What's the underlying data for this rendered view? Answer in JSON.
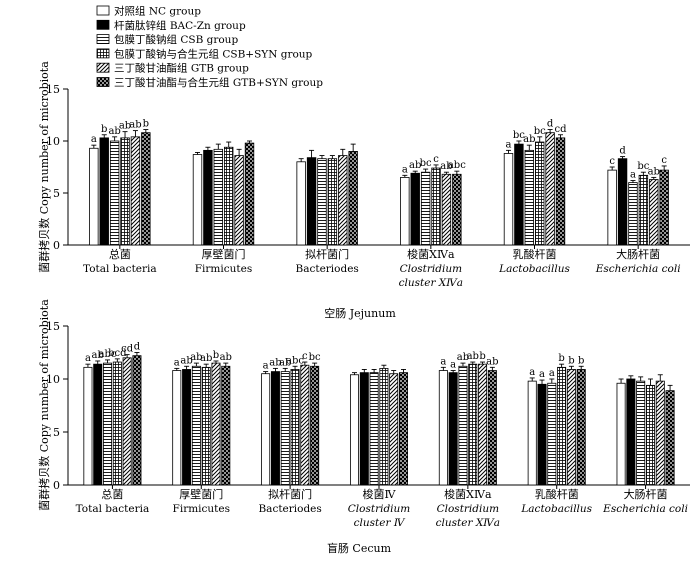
{
  "legend": [
    {
      "label": "对照组  NC group",
      "pattern": "white"
    },
    {
      "label": "杆菌肽锌组  BAC-Zn group",
      "pattern": "black"
    },
    {
      "label": "包膜丁酸钠组  CSB group",
      "pattern": "hlines"
    },
    {
      "label": "包膜丁酸钠与合生元组  CSB+SYN group",
      "pattern": "grid"
    },
    {
      "label": "三丁酸甘油酯组  GTB group",
      "pattern": "diag"
    },
    {
      "label": "三丁酸甘油酯与合生元组  GTB+SYN group",
      "pattern": "dots"
    }
  ],
  "chart_data": [
    {
      "type": "bar",
      "title": "空肠  Jejunum",
      "ylabel": "菌群拷贝数 Copy number of microbiota",
      "ylim": [
        0,
        15
      ],
      "yticks": [
        "0",
        "5",
        "10",
        "15"
      ],
      "categories": [
        {
          "cn": "总菌",
          "en": "Total bacteria",
          "en2": "",
          "italic": false
        },
        {
          "cn": "厚壁菌门",
          "en": "Firmicutes",
          "en2": "",
          "italic": false
        },
        {
          "cn": "拟杆菌门",
          "en": "Bacteriodes",
          "en2": "",
          "italic": false
        },
        {
          "cn": "梭菌XⅣa",
          "en": "Clostridium",
          "en2": "cluster XⅣa",
          "italic": true
        },
        {
          "cn": "乳酸杆菌",
          "en": "Lactobacillus",
          "en2": "",
          "italic": true
        },
        {
          "cn": "大肠杆菌",
          "en": "Escherichia coli",
          "en2": "",
          "italic": true
        }
      ],
      "series": [
        {
          "name": "NC group",
          "values": [
            9.3,
            8.7,
            8.0,
            6.5,
            8.8,
            7.2
          ],
          "errors": [
            0.3,
            0.2,
            0.3,
            0.2,
            0.3,
            0.3
          ],
          "labels": [
            "a",
            "",
            "",
            "a",
            "a",
            "c"
          ]
        },
        {
          "name": "BAC-Zn group",
          "values": [
            10.3,
            9.1,
            8.4,
            6.9,
            9.7,
            8.3
          ],
          "errors": [
            0.3,
            0.3,
            0.7,
            0.2,
            0.3,
            0.2
          ],
          "labels": [
            "b",
            "",
            "",
            "ab",
            "bc",
            "d"
          ]
        },
        {
          "name": "CSB group",
          "values": [
            10.0,
            9.2,
            8.3,
            7.0,
            9.1,
            6.0
          ],
          "errors": [
            0.4,
            0.5,
            0.3,
            0.3,
            0.5,
            0.2
          ],
          "labels": [
            "ab",
            "",
            "",
            "bc",
            "ab",
            "a"
          ]
        },
        {
          "name": "CSB+SYN group",
          "values": [
            10.3,
            9.4,
            8.3,
            7.4,
            9.9,
            6.7
          ],
          "errors": [
            0.6,
            0.5,
            0.3,
            0.3,
            0.5,
            0.3
          ],
          "labels": [
            "ab",
            "",
            "",
            "c",
            "bc",
            "bc"
          ]
        },
        {
          "name": "GTB group",
          "values": [
            10.4,
            8.6,
            8.6,
            6.8,
            10.8,
            6.3
          ],
          "errors": [
            0.6,
            0.6,
            0.6,
            0.2,
            0.3,
            0.2
          ],
          "labels": [
            "ab",
            "",
            "",
            "ab",
            "d",
            "ab"
          ]
        },
        {
          "name": "GTB+SYN group",
          "values": [
            10.8,
            9.8,
            9.0,
            6.8,
            10.3,
            7.2
          ],
          "errors": [
            0.3,
            0.2,
            0.7,
            0.3,
            0.3,
            0.4
          ],
          "labels": [
            "b",
            "",
            "",
            "abc",
            "cd",
            "c"
          ]
        }
      ]
    },
    {
      "type": "bar",
      "title": "盲肠  Cecum",
      "ylabel": "菌群拷贝数 Copy number of microbiota",
      "ylim": [
        0,
        15
      ],
      "yticks": [
        "0",
        "5",
        "10",
        "15"
      ],
      "categories": [
        {
          "cn": "总菌",
          "en": "Total bacteria",
          "en2": "",
          "italic": false
        },
        {
          "cn": "厚壁菌门",
          "en": "Firmicutes",
          "en2": "",
          "italic": false
        },
        {
          "cn": "拟杆菌门",
          "en": "Bacteriodes",
          "en2": "",
          "italic": false
        },
        {
          "cn": "梭菌Ⅳ",
          "en": "Clostridium",
          "en2": "cluster Ⅳ",
          "italic": true
        },
        {
          "cn": "梭菌XⅣa",
          "en": "Clostridium",
          "en2": "cluster XⅣa",
          "italic": true
        },
        {
          "cn": "乳酸杆菌",
          "en": "Lactobacillus",
          "en2": "",
          "italic": true
        },
        {
          "cn": "大肠杆菌",
          "en": "Escherichia coli",
          "en2": "",
          "italic": true
        }
      ],
      "series": [
        {
          "name": "NC group",
          "values": [
            11.1,
            10.8,
            10.5,
            10.4,
            10.8,
            9.8,
            9.6
          ],
          "errors": [
            0.3,
            0.2,
            0.2,
            0.2,
            0.3,
            0.3,
            0.4
          ],
          "labels": [
            "a",
            "a",
            "a",
            "",
            "a",
            "a",
            ""
          ]
        },
        {
          "name": "BAC-Zn group",
          "values": [
            11.4,
            10.9,
            10.7,
            10.6,
            10.6,
            9.5,
            10.0
          ],
          "errors": [
            0.3,
            0.3,
            0.3,
            0.3,
            0.2,
            0.4,
            0.3
          ],
          "labels": [
            "ab",
            "ab",
            "ab",
            "",
            "a",
            "a",
            ""
          ]
        },
        {
          "name": "CSB group",
          "values": [
            11.5,
            11.2,
            10.7,
            10.6,
            11.2,
            9.6,
            9.8
          ],
          "errors": [
            0.3,
            0.3,
            0.3,
            0.3,
            0.3,
            0.4,
            0.4
          ],
          "labels": [
            "abc",
            "ab",
            "ab",
            "",
            "ab",
            "a",
            ""
          ]
        },
        {
          "name": "CSB+SYN group",
          "values": [
            11.6,
            11.1,
            10.9,
            11.0,
            11.4,
            11.1,
            9.4
          ],
          "errors": [
            0.3,
            0.3,
            0.3,
            0.3,
            0.2,
            0.3,
            0.6
          ],
          "labels": [
            "bcd",
            "ab",
            "abc",
            "",
            "ab",
            "b",
            ""
          ]
        },
        {
          "name": "GTB group",
          "values": [
            12.0,
            11.5,
            11.3,
            10.5,
            11.4,
            10.9,
            9.8
          ],
          "errors": [
            0.3,
            0.2,
            0.3,
            0.3,
            0.2,
            0.3,
            0.6
          ],
          "labels": [
            "cd",
            "b",
            "c",
            "",
            "b",
            "b",
            ""
          ]
        },
        {
          "name": "GTB+SYN group",
          "values": [
            12.2,
            11.2,
            11.2,
            10.6,
            10.8,
            10.9,
            8.9
          ],
          "errors": [
            0.3,
            0.3,
            0.3,
            0.3,
            0.3,
            0.3,
            0.5
          ],
          "labels": [
            "d",
            "ab",
            "bc",
            "",
            "ab",
            "b",
            ""
          ]
        }
      ]
    }
  ]
}
